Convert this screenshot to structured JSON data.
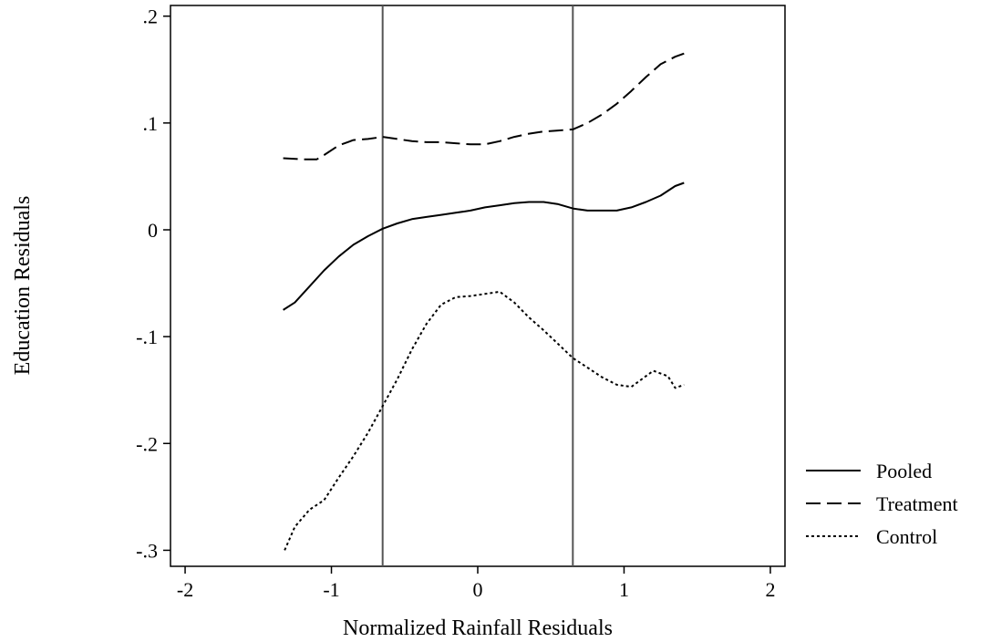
{
  "chart_data": {
    "type": "line",
    "xlabel": "Normalized Rainfall Residuals",
    "ylabel": "Education Residuals",
    "xlim": [
      -2.1,
      2.1
    ],
    "ylim": [
      -0.315,
      0.21
    ],
    "xticks": [
      -2,
      -1,
      0,
      1,
      2
    ],
    "xtick_labels": [
      "-2",
      "-1",
      "0",
      "1",
      "2"
    ],
    "yticks": [
      0.2,
      0.1,
      0,
      -0.1,
      -0.2,
      -0.3
    ],
    "ytick_labels": [
      ".2",
      ".1",
      "0",
      "-.1",
      "-.2",
      "-.3"
    ],
    "grid": false,
    "legend_position": "right",
    "vertical_lines": [
      -0.65,
      0.65
    ],
    "series": [
      {
        "name": "Pooled",
        "style": "solid",
        "x": [
          -1.33,
          -1.25,
          -1.15,
          -1.05,
          -0.95,
          -0.85,
          -0.75,
          -0.65,
          -0.55,
          -0.45,
          -0.35,
          -0.25,
          -0.15,
          -0.05,
          0.05,
          0.15,
          0.25,
          0.35,
          0.45,
          0.55,
          0.65,
          0.75,
          0.85,
          0.95,
          1.05,
          1.15,
          1.25,
          1.35,
          1.41
        ],
        "y": [
          -0.075,
          -0.068,
          -0.053,
          -0.038,
          -0.025,
          -0.014,
          -0.006,
          0.001,
          0.006,
          0.01,
          0.012,
          0.014,
          0.016,
          0.018,
          0.021,
          0.023,
          0.025,
          0.026,
          0.026,
          0.024,
          0.02,
          0.018,
          0.018,
          0.018,
          0.021,
          0.026,
          0.032,
          0.041,
          0.044
        ]
      },
      {
        "name": "Treatment",
        "style": "dashed",
        "x": [
          -1.33,
          -1.2,
          -1.1,
          -1.05,
          -0.95,
          -0.85,
          -0.75,
          -0.65,
          -0.55,
          -0.45,
          -0.35,
          -0.25,
          -0.15,
          -0.05,
          0.05,
          0.15,
          0.25,
          0.35,
          0.45,
          0.55,
          0.65,
          0.75,
          0.85,
          0.95,
          1.05,
          1.15,
          1.25,
          1.35,
          1.41
        ],
        "y": [
          0.067,
          0.066,
          0.066,
          0.07,
          0.079,
          0.084,
          0.085,
          0.087,
          0.085,
          0.083,
          0.082,
          0.082,
          0.081,
          0.08,
          0.08,
          0.083,
          0.087,
          0.09,
          0.092,
          0.093,
          0.094,
          0.1,
          0.108,
          0.118,
          0.13,
          0.143,
          0.155,
          0.162,
          0.165
        ]
      },
      {
        "name": "Control",
        "style": "dotted",
        "x": [
          -1.32,
          -1.25,
          -1.15,
          -1.05,
          -0.95,
          -0.85,
          -0.75,
          -0.65,
          -0.55,
          -0.45,
          -0.35,
          -0.25,
          -0.15,
          -0.05,
          0.05,
          0.15,
          0.25,
          0.35,
          0.45,
          0.55,
          0.65,
          0.75,
          0.85,
          0.95,
          1.05,
          1.1,
          1.2,
          1.3,
          1.35,
          1.41
        ],
        "y": [
          -0.3,
          -0.278,
          -0.262,
          -0.253,
          -0.232,
          -0.212,
          -0.19,
          -0.165,
          -0.14,
          -0.112,
          -0.088,
          -0.07,
          -0.063,
          -0.062,
          -0.06,
          -0.058,
          -0.068,
          -0.082,
          -0.094,
          -0.107,
          -0.12,
          -0.129,
          -0.138,
          -0.145,
          -0.147,
          -0.142,
          -0.132,
          -0.137,
          -0.148,
          -0.145
        ]
      }
    ]
  }
}
